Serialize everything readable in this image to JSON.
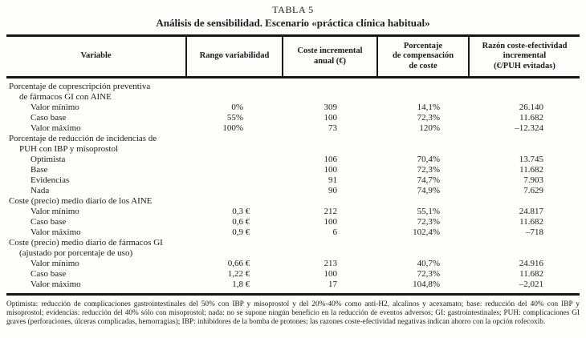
{
  "title": {
    "label": "TABLA 5",
    "subtitle": "Análisis de sensibilidad. Escenario «práctica clínica habitual»"
  },
  "table": {
    "columns": [
      "Variable",
      "Rango variabilidad",
      "Coste incremental\nanual (€)",
      "Porcentaje\nde compensación\nde coste",
      "Razón coste-efectividad\nincremental\n(€/PUH evitadas)"
    ],
    "rows": [
      {
        "indent": 0,
        "label": "Porcentaje de coprescripción preventiva",
        "rango": "",
        "rango_unit": "",
        "coste": "",
        "pct": "",
        "razon": ""
      },
      {
        "indent": 1,
        "label": "de fármacos GI con AINE",
        "rango": "",
        "rango_unit": "",
        "coste": "",
        "pct": "",
        "razon": ""
      },
      {
        "indent": 2,
        "label": "Valor mínimo",
        "rango": "0%",
        "rango_unit": "",
        "coste": "309",
        "pct": "14,1%",
        "razon": "26.140"
      },
      {
        "indent": 2,
        "label": "Caso base",
        "rango": "55%",
        "rango_unit": "",
        "coste": "100",
        "pct": "72,3%",
        "razon": "11.682"
      },
      {
        "indent": 2,
        "label": "Valor máximo",
        "rango": "100%",
        "rango_unit": "",
        "coste": "73",
        "pct": "120%",
        "razon": "–12.324"
      },
      {
        "indent": 0,
        "label": "Porcentaje de reducción de incidencias de",
        "rango": "",
        "rango_unit": "",
        "coste": "",
        "pct": "",
        "razon": ""
      },
      {
        "indent": 1,
        "label": "PUH con IBP y misoprostol",
        "rango": "",
        "rango_unit": "",
        "coste": "",
        "pct": "",
        "razon": ""
      },
      {
        "indent": 2,
        "label": "Optimista",
        "rango": "",
        "rango_unit": "",
        "coste": "106",
        "pct": "70,4%",
        "razon": "13.745"
      },
      {
        "indent": 2,
        "label": "Base",
        "rango": "",
        "rango_unit": "",
        "coste": "100",
        "pct": "72,3%",
        "razon": "11.682"
      },
      {
        "indent": 2,
        "label": "Evidencias",
        "rango": "",
        "rango_unit": "",
        "coste": "91",
        "pct": "74,7%",
        "razon": "7.903"
      },
      {
        "indent": 2,
        "label": "Nada",
        "rango": "",
        "rango_unit": "",
        "coste": "90",
        "pct": "74,9%",
        "razon": "7.629"
      },
      {
        "indent": 0,
        "label": "Coste (precio) medio diario de los AINE",
        "rango": "",
        "rango_unit": "",
        "coste": "",
        "pct": "",
        "razon": ""
      },
      {
        "indent": 2,
        "label": "Valor mínimo",
        "rango": "0,3",
        "rango_unit": "€",
        "coste": "212",
        "pct": "55,1%",
        "razon": "24.817"
      },
      {
        "indent": 2,
        "label": "Caso base",
        "rango": "0,6",
        "rango_unit": "€",
        "coste": "100",
        "pct": "72,3%",
        "razon": "11.682"
      },
      {
        "indent": 2,
        "label": "Valor máximo",
        "rango": "0,9",
        "rango_unit": "€",
        "coste": "6",
        "pct": "102,4%",
        "razon": "–718"
      },
      {
        "indent": 0,
        "label": "Coste (precio) medio diario de fármacos GI",
        "rango": "",
        "rango_unit": "",
        "coste": "",
        "pct": "",
        "razon": ""
      },
      {
        "indent": 1,
        "label": "(ajustado por porcentaje de uso)",
        "rango": "",
        "rango_unit": "",
        "coste": "",
        "pct": "",
        "razon": ""
      },
      {
        "indent": 2,
        "label": "Valor mínimo",
        "rango": "0,66",
        "rango_unit": "€",
        "coste": "213",
        "pct": "40,7%",
        "razon": "24.916"
      },
      {
        "indent": 2,
        "label": "Caso base",
        "rango": "1,22",
        "rango_unit": "€",
        "coste": "100",
        "pct": "72,3%",
        "razon": "11.682"
      },
      {
        "indent": 2,
        "label": "Valor máximo",
        "rango": "1,8",
        "rango_unit": "€",
        "coste": "17",
        "pct": "104,8%",
        "razon": "–2,021"
      }
    ]
  },
  "footnote": "Optimista: reducción de complicaciones gastrointestinales del 50% con IBP y misoprostol y del 20%-40% como anti-H2, alcalinos y acexamato; base: reducción del 40% con IBP y misoprostol; evidencias: reducción del 40% sólo con misoprostol; nada: no se supone ningún beneficio en la reducción de eventos adversos; GI: gastrointestinales; PUH: complicaciones GI graves (perforaciones, úlceras complicadas, hemorragias); IBP: inhibidores de la bomba de protones; las razones coste-efectividad negativas indican ahorro con la opción rofecoxib."
}
